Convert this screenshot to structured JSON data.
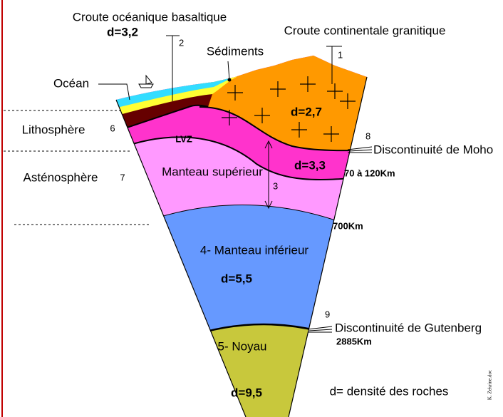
{
  "labels": {
    "oceanic_crust": "Croute océanique basaltique",
    "oceanic_density": "d=3,2",
    "marker_2": "2",
    "sediments": "Sédiments",
    "continental_crust": "Croute continentale granitique",
    "marker_1": "1",
    "ocean": "Océan",
    "continental_density": "d=2,7",
    "lithosphere": "Lithosphère",
    "marker_6": "6",
    "lvz": "LVZ",
    "marker_8": "8",
    "moho": "Discontinuité de Moho",
    "lith_mantle_density": "d=3,3",
    "moho_depth": "70 à 120Km",
    "asthenosphere": "Asténosphère",
    "marker_7": "7",
    "upper_mantle": "Manteau supérieur",
    "marker_3": "3",
    "upper_mantle_depth": "700Km",
    "lower_mantle": "4- Manteau inférieur",
    "lower_mantle_density": "d=5,5",
    "marker_9": "9",
    "gutenberg": "Discontinuité de Gutenberg",
    "gutenberg_depth": "2885Km",
    "core": "5- Noyau",
    "core_density": "d=9,5",
    "legend": "d= densité des roches",
    "credit": "K. Zekrine.doc"
  }
}
